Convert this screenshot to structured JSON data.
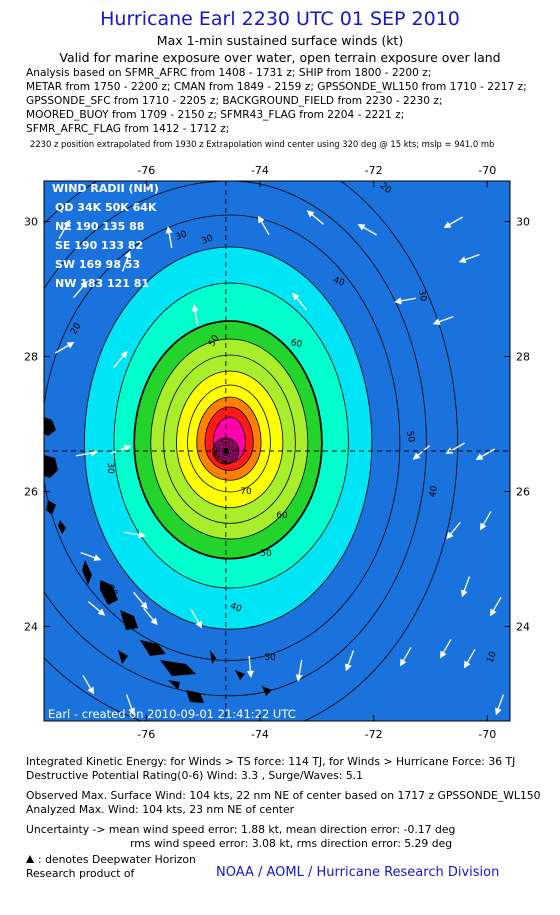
{
  "header": {
    "title": "Hurricane Earl 2230 UTC 01 SEP 2010",
    "subtitle": "Max 1-min sustained surface winds (kt)",
    "validity": "Valid for marine exposure over water, open terrain exposure over land"
  },
  "analysis_lines": [
    "Analysis based on SFMR_AFRC from 1408 - 1731 z; SHIP from 1800 - 2200 z;",
    "METAR from 1750 - 2200 z; CMAN from 1849 - 2159 z; GPSSONDE_WL150 from 1710 - 2217 z;",
    "GPSSONDE_SFC from 1710 - 2205 z; BACKGROUND_FIELD from 2230 - 2230 z;",
    "MOORED_BUOY from 1709 - 2150 z; SFMR43_FLAG from 2204 - 2221 z;",
    "SFMR_AFRC_FLAG from 1412 - 1712 z;"
  ],
  "extrapolation_note": "2230 z position extrapolated from 1930 z Extrapolation wind center using 320 deg @ 15 kts; mslp = 941.0 mb",
  "map": {
    "lon_ticks": [
      "-76",
      "-74",
      "-72",
      "-70"
    ],
    "lat_ticks": [
      "30",
      "28",
      "26",
      "24"
    ],
    "lon_range": [
      -77.8,
      -69.6
    ],
    "lat_range": [
      22.6,
      30.6
    ],
    "center": {
      "lon": -74.6,
      "lat": 26.6
    },
    "contour_levels": [
      10,
      20,
      30,
      40,
      50,
      60,
      70
    ],
    "colors": {
      "background": "#1a72dd",
      "cyan": "#00e5f5",
      "aqua": "#00ffcc",
      "green": "#22d42c",
      "lightgreen": "#a8ee2a",
      "yellow": "#ffff00",
      "orange": "#ff8000",
      "red": "#ff1a1a",
      "magenta": "#ff00aa"
    },
    "wind_radii": {
      "title": "WIND RADII (NM)",
      "header": "QD 34K 50K 64K",
      "rows": [
        "NE 190 135  88",
        "SE 190 133  82",
        "SW 169  98  53",
        "NW 183 121  81"
      ]
    },
    "credit": "Earl - created on 2010-09-01 21:41:22 UTC"
  },
  "footer": {
    "ike": "Integrated Kinetic Energy:  for Winds > TS force: 114 TJ,  for Winds > Hurricane Force: 36 TJ",
    "dpr": "Destructive Potential Rating(0-6)   Wind: 3.3 , Surge/Waves: 5.1",
    "observed": "Observed Max. Surface Wind: 104 kts, 22 nm NE of center based on 1717 z GPSSONDE_WL150",
    "analyzed": "Analyzed Max. Wind: 104 kts, 23 nm NE of center",
    "uncertainty1": "Uncertainty -> mean wind speed error: 1.88 kt,   mean direction error:  -0.17 deg",
    "uncertainty2": "rms wind speed error: 3.08 kt,   rms direction error: 5.29 deg",
    "deepwater": ": denotes Deepwater Horizon",
    "research": "Research product of",
    "org": "NOAA / AOML / Hurricane Research Division"
  }
}
